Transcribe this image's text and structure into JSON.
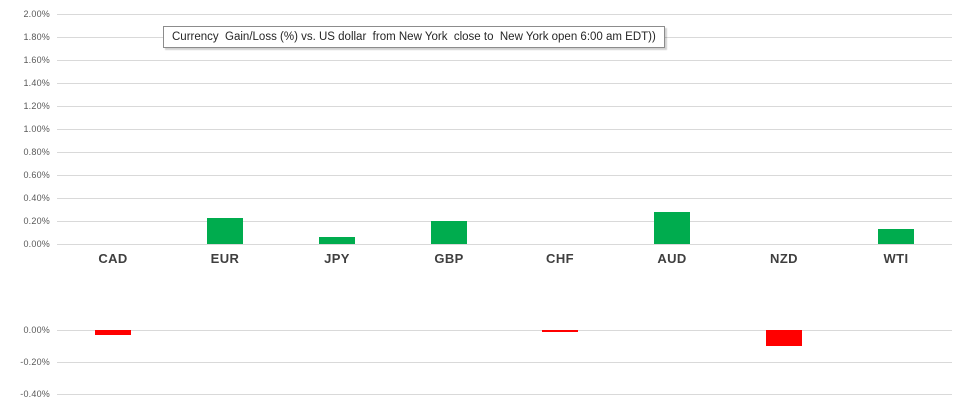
{
  "chart_data": {
    "type": "bar",
    "title": "Currency  Gain/Loss (%) vs. US dollar  from New York  close to  New York open 6:00 am EDT))",
    "categories": [
      "CAD",
      "EUR",
      "JPY",
      "GBP",
      "CHF",
      "AUD",
      "NZD",
      "WTI"
    ],
    "values": [
      -0.03,
      0.23,
      0.06,
      0.2,
      -0.01,
      0.28,
      -0.1,
      0.13
    ],
    "value_unit": "percent gain/loss vs US dollar",
    "legend": "none",
    "grid": true,
    "positive_color": "#00AC4E",
    "negative_color": "#FF0000",
    "gridline_color": "#d9d9d9",
    "axis_text_color": "#595959",
    "category_text_color": "#3f3f3f",
    "upper_axis": {
      "ticks": [
        "2.00%",
        "1.80%",
        "1.60%",
        "1.40%",
        "1.20%",
        "1.00%",
        "0.80%",
        "0.60%",
        "0.40%",
        "0.20%",
        "0.00%"
      ],
      "max": 2.0,
      "min": 0.0,
      "step": 0.2
    },
    "lower_axis": {
      "ticks": [
        "0.00%",
        "-0.20%",
        "-0.40%"
      ],
      "max": 0.0,
      "min": -0.4,
      "step": 0.2
    }
  }
}
